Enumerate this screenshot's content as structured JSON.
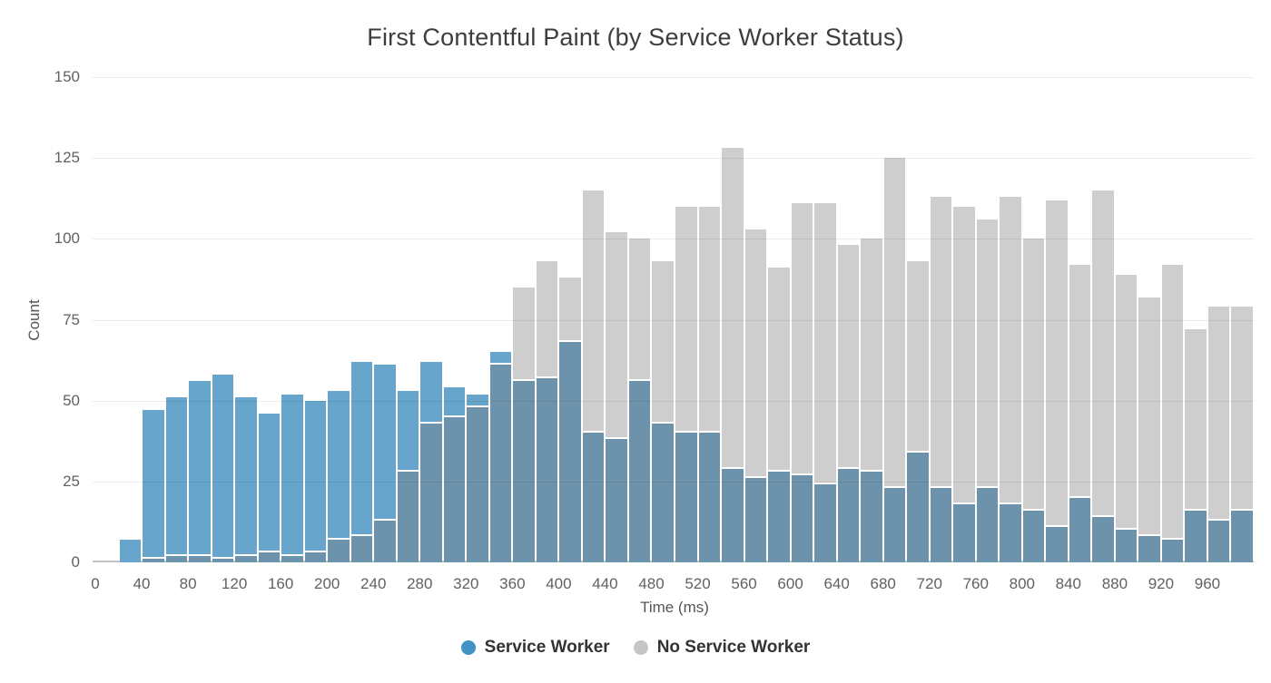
{
  "title": "First Contentful Paint (by Service Worker Status)",
  "axes": {
    "x_title": "Time (ms)",
    "y_title": "Count",
    "y_ticks": [
      0,
      25,
      50,
      75,
      100,
      125,
      150
    ],
    "x_ticks": [
      0,
      40,
      80,
      120,
      160,
      200,
      240,
      280,
      320,
      360,
      400,
      440,
      480,
      520,
      560,
      600,
      640,
      680,
      720,
      760,
      800,
      840,
      880,
      920,
      960
    ]
  },
  "legend": {
    "items": [
      {
        "label": "Service Worker",
        "color": "#4292c6"
      },
      {
        "label": "No Service Worker",
        "color": "#c6c6c6"
      }
    ]
  },
  "colors": {
    "service_worker_bar": "#68a5cc",
    "no_service_worker_bar": "#cecece",
    "overlap_bar": "#6d93ac",
    "grid": "rgba(0,0,0,0.075)",
    "axis_text": "#616161",
    "title_text": "#3d3d3d"
  },
  "chart_data": {
    "type": "bar",
    "variant": "overlaid-histogram",
    "title": "First Contentful Paint (by Service Worker Status)",
    "xlabel": "Time (ms)",
    "ylabel": "Count",
    "xlim": [
      0,
      1000
    ],
    "ylim": [
      0,
      150
    ],
    "grid": true,
    "legend_position": "bottom",
    "bin_width_ms": 20,
    "bin_starts_ms": [
      20,
      40,
      60,
      80,
      100,
      120,
      140,
      160,
      180,
      200,
      220,
      240,
      260,
      280,
      300,
      320,
      340,
      360,
      380,
      400,
      420,
      440,
      460,
      480,
      500,
      520,
      540,
      560,
      580,
      600,
      620,
      640,
      660,
      680,
      700,
      720,
      740,
      760,
      780,
      800,
      820,
      840,
      860,
      880,
      900,
      920,
      940,
      960,
      980
    ],
    "series": [
      {
        "name": "Service Worker",
        "color": "#68a5cc",
        "values": [
          7,
          47,
          51,
          56,
          58,
          51,
          46,
          52,
          50,
          53,
          62,
          61,
          53,
          62,
          54,
          52,
          65,
          56,
          57,
          68,
          40,
          38,
          56,
          43,
          40,
          40,
          29,
          26,
          28,
          27,
          24,
          29,
          28,
          23,
          34,
          23,
          18,
          23,
          18,
          16,
          11,
          20,
          14,
          10,
          8,
          7,
          16,
          13,
          16
        ]
      },
      {
        "name": "No Service Worker",
        "color": "#cecece",
        "values": [
          0,
          1,
          2,
          2,
          1,
          2,
          3,
          2,
          3,
          7,
          8,
          13,
          28,
          43,
          45,
          48,
          61,
          85,
          93,
          88,
          115,
          102,
          100,
          93,
          110,
          110,
          128,
          103,
          91,
          111,
          111,
          98,
          100,
          125,
          93,
          113,
          110,
          106,
          113,
          100,
          112,
          92,
          115,
          89,
          82,
          92,
          72,
          79,
          79
        ]
      }
    ],
    "overlap_color": "#6d93ac"
  }
}
